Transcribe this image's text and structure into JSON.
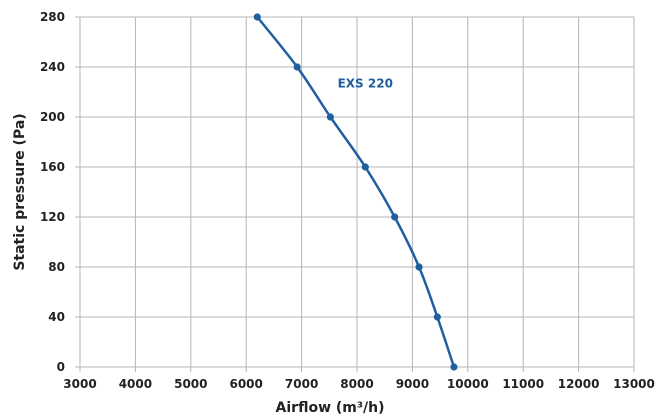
{
  "chart_data": {
    "type": "line",
    "xlabel": "Airflow (m³/h)",
    "ylabel": "Static pressure (Pa)",
    "xlim": [
      3000,
      13000
    ],
    "ylim": [
      0,
      280
    ],
    "x_ticks": [
      3000,
      4000,
      5000,
      6000,
      7000,
      8000,
      9000,
      10000,
      11000,
      12000,
      13000
    ],
    "y_ticks": [
      0,
      40,
      80,
      120,
      160,
      200,
      240,
      280
    ],
    "grid": true,
    "series": [
      {
        "name": "EXS 220",
        "color": "#1f5fa0",
        "points": [
          {
            "x": 6200,
            "y": 280
          },
          {
            "x": 6920,
            "y": 240
          },
          {
            "x": 7520,
            "y": 200
          },
          {
            "x": 8150,
            "y": 160
          },
          {
            "x": 8680,
            "y": 120
          },
          {
            "x": 9120,
            "y": 80
          },
          {
            "x": 9450,
            "y": 40
          },
          {
            "x": 9750,
            "y": 0
          }
        ]
      }
    ]
  }
}
